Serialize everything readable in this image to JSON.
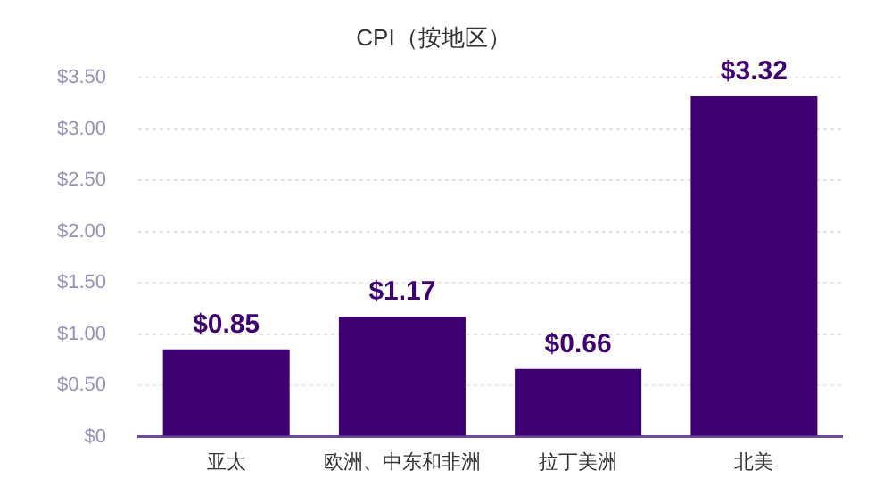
{
  "chart_data": {
    "type": "bar",
    "title": "CPI（按地区）",
    "categories": [
      "亚太",
      "欧洲、中东和非洲",
      "拉丁美洲",
      "北美"
    ],
    "values": [
      0.85,
      1.17,
      0.66,
      3.32
    ],
    "value_labels": [
      "$0.85",
      "$1.17",
      "$0.66",
      "$3.32"
    ],
    "color": "#3f0071",
    "ylim": [
      0,
      3.5
    ],
    "yticks": [
      {
        "value": 0,
        "label": "$0"
      },
      {
        "value": 0.5,
        "label": "$0.50"
      },
      {
        "value": 1,
        "label": "$1.00"
      },
      {
        "value": 1.5,
        "label": "$1.50"
      },
      {
        "value": 2,
        "label": "$2.00"
      },
      {
        "value": 2.5,
        "label": "$2.50"
      },
      {
        "value": 3,
        "label": "$3.00"
      },
      {
        "value": 3.5,
        "label": "$3.50"
      }
    ],
    "grid": "y",
    "legend": false
  }
}
